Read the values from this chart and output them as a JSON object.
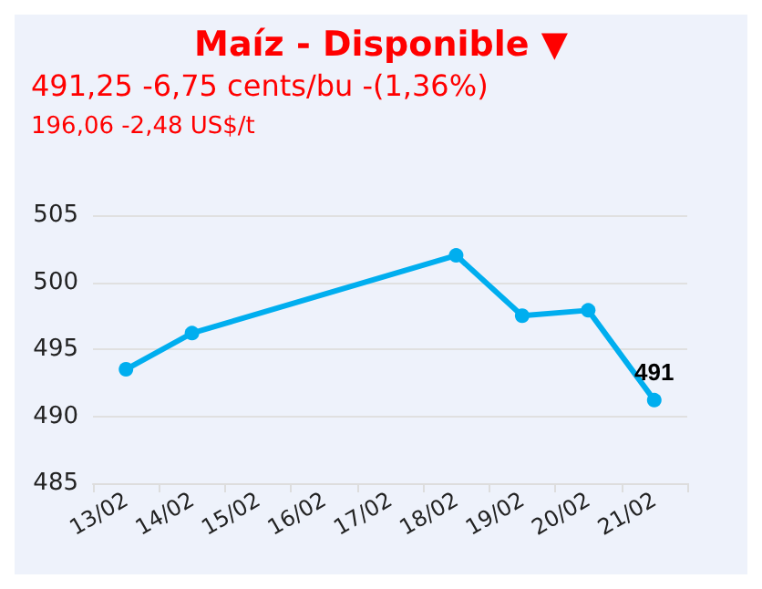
{
  "chart_data": {
    "type": "line",
    "title": "Maíz - Disponible ▼",
    "subtitle": "491,25 -6,75 cents/bu -(1,36%)",
    "annotations": [
      "196,06 -2,48 US$/t"
    ],
    "categories": [
      "13/02",
      "14/02",
      "15/02",
      "16/02",
      "17/02",
      "18/02",
      "19/02",
      "20/02",
      "21/02"
    ],
    "series": [
      {
        "color": "#00aeef",
        "values": [
          493.5,
          496.2,
          null,
          null,
          null,
          502,
          497.5,
          497.9,
          491.2
        ],
        "value_labels": [
          null,
          null,
          null,
          null,
          null,
          null,
          null,
          null,
          "491"
        ]
      }
    ],
    "ylim": [
      485,
      505
    ],
    "yticks": [
      485,
      490,
      495,
      500,
      505
    ],
    "grid": "y",
    "marker": "circle",
    "line_style": "solid"
  }
}
